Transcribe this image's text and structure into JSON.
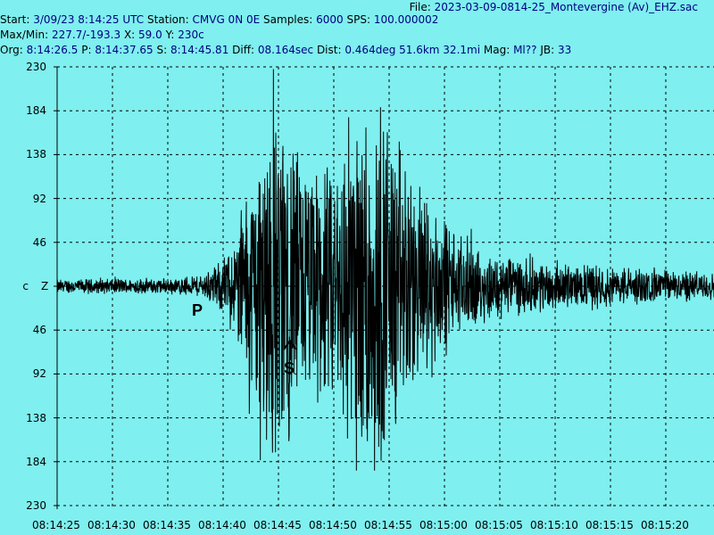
{
  "header": {
    "file_label": "File:",
    "file_value": "2023-03-09-0814-25_Montevergine (Av)_EHZ.sac",
    "start_label": "Start:",
    "start_value": "3/09/23  8:14:25 UTC",
    "station_label": "Station:",
    "station_value": "CMVG 0N 0E",
    "samples_label": "Samples:",
    "samples_value": "6000",
    "sps_label": "SPS:",
    "sps_value": "100.000002",
    "maxmin_label": "Max/Min:",
    "maxmin_value": "227.7/-193.3",
    "x_label": "X:",
    "x_value": "59.0",
    "y_label": "Y:",
    "y_value": "230c",
    "org_label": "Org:",
    "org_value": "8:14:26.5",
    "p_label": "P:",
    "p_value": "8:14:37.65",
    "s_label": "S:",
    "s_value": "8:14:45.81",
    "diff_label": "Diff:",
    "diff_value": "08.164sec",
    "dist_label": "Dist:",
    "dist_value": "0.464deg 51.6km 32.1mi",
    "mag_label": "Mag:",
    "mag_value": "Ml??",
    "jb_label": "JB:",
    "jb_value": "33"
  },
  "colors": {
    "background": "#7FEFEF",
    "trace": "#000000",
    "value_text": "#000080",
    "label_text": "#000000",
    "grid": "#000000"
  },
  "chart_data": {
    "type": "line",
    "y_axis_left_labels": [
      "230",
      "184",
      "138",
      "92",
      "46",
      "c",
      "46",
      "92",
      "138",
      "184",
      "230"
    ],
    "zero_marker": "Z",
    "ylim": [
      -230,
      230
    ],
    "x_tick_labels": [
      "08:14:25",
      "08:14:30",
      "08:14:35",
      "08:14:40",
      "08:14:45",
      "08:14:50",
      "08:14:55",
      "08:15:00",
      "08:15:05",
      "08:15:10",
      "08:15:15",
      "08:15:20"
    ],
    "x_range_seconds": [
      0,
      60
    ],
    "grid": true,
    "series": [
      {
        "envelope_time_s": [
          0,
          10,
          13,
          14.5,
          16,
          17,
          18,
          19,
          20,
          21,
          22,
          23,
          24,
          25,
          26,
          27,
          28,
          29,
          30,
          31,
          32,
          33,
          34,
          35,
          36,
          37,
          38,
          40,
          42,
          45,
          50,
          55,
          60
        ],
        "envelope_amplitude": [
          8,
          9,
          12,
          25,
          50,
          110,
          150,
          190,
          210,
          170,
          140,
          150,
          120,
          130,
          190,
          200,
          220,
          210,
          175,
          165,
          120,
          110,
          90,
          80,
          60,
          55,
          45,
          35,
          30,
          25,
          22,
          18,
          15
        ]
      }
    ],
    "phase_picks": [
      {
        "label": "P",
        "time": "8:14:37.65"
      },
      {
        "label": "S",
        "time": "8:14:45.81"
      }
    ],
    "max": 227.7,
    "min": -193.3
  }
}
